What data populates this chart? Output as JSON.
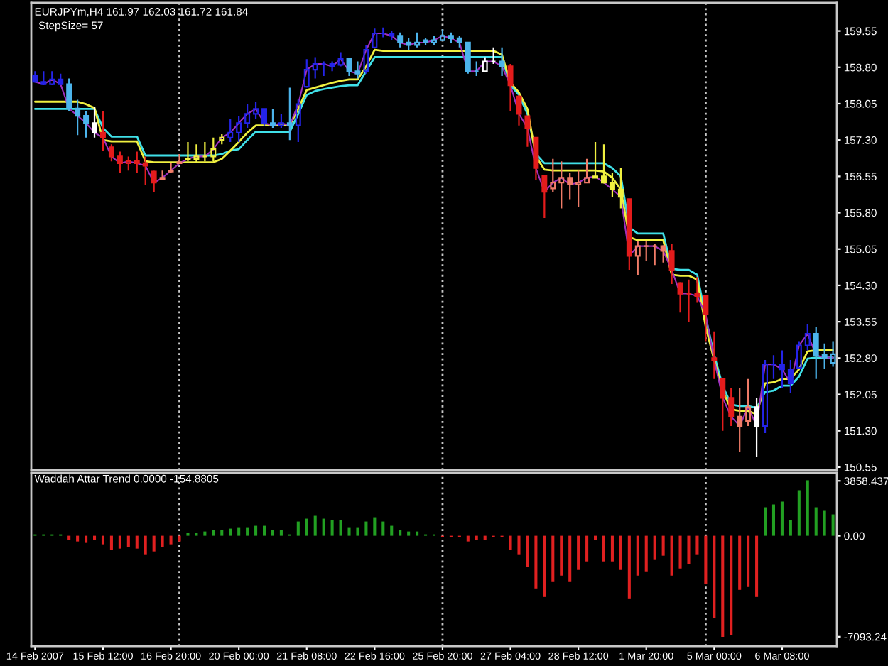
{
  "chart_data": [
    {
      "type": "candlestick",
      "title": "EURJPYm,H4 161.97 162.03 161.72 161.84",
      "subtitle": "StepSize= 57",
      "categories": [
        null,
        null,
        null,
        null,
        null,
        null,
        null,
        null,
        null,
        null,
        null,
        null,
        null,
        null,
        null,
        null,
        null,
        null,
        null,
        null,
        null,
        null,
        null,
        null,
        null,
        null,
        null,
        null,
        null,
        null,
        null,
        null,
        null,
        null,
        null,
        null,
        null,
        null,
        null,
        null,
        null,
        null,
        null,
        null,
        null,
        null,
        null,
        null,
        null,
        null,
        null,
        null,
        null,
        null,
        null,
        null,
        null,
        null,
        null,
        null,
        null,
        null,
        null,
        null,
        null,
        null,
        null,
        null,
        null,
        null,
        null,
        null,
        null,
        null,
        null,
        null,
        null,
        null,
        null,
        null,
        null,
        null,
        null,
        null,
        null,
        null,
        null,
        null,
        null,
        null,
        null,
        null,
        null,
        null,
        null
      ],
      "ohlc": [
        [
          158.62,
          158.72,
          158.48,
          158.5
        ],
        [
          158.5,
          158.72,
          158.43,
          158.45
        ],
        [
          158.45,
          158.72,
          158.43,
          158.55
        ],
        [
          158.55,
          158.67,
          158.43,
          158.45
        ],
        [
          158.45,
          158.57,
          157.89,
          157.95
        ],
        [
          157.95,
          158.13,
          157.4,
          157.8
        ],
        [
          157.8,
          157.89,
          157.35,
          157.65
        ],
        [
          157.65,
          157.99,
          157.35,
          157.45
        ],
        [
          157.45,
          157.89,
          157.08,
          157.35
        ],
        [
          157.15,
          157.21,
          156.86,
          156.96
        ],
        [
          156.96,
          157.06,
          156.62,
          156.82
        ],
        [
          156.82,
          156.96,
          156.67,
          156.86
        ],
        [
          156.86,
          157.06,
          156.62,
          156.82
        ],
        [
          156.82,
          156.96,
          156.38,
          156.77
        ],
        [
          156.65,
          156.67,
          156.23,
          156.42
        ],
        [
          156.5,
          156.67,
          156.47,
          156.52
        ],
        [
          156.65,
          156.82,
          156.62,
          156.67
        ],
        [
          156.84,
          157.01,
          156.82,
          156.82
        ],
        [
          156.9,
          157.26,
          156.86,
          156.91
        ],
        [
          156.91,
          157.21,
          156.82,
          156.96
        ],
        [
          156.96,
          157.26,
          156.86,
          156.96
        ],
        [
          156.96,
          157.35,
          156.86,
          157.11
        ],
        [
          157.3,
          157.42,
          157.21,
          157.35
        ],
        [
          157.35,
          157.74,
          157.26,
          157.45
        ],
        [
          157.45,
          157.79,
          157.26,
          157.65
        ],
        [
          157.65,
          158.04,
          157.55,
          157.84
        ],
        [
          157.84,
          158.09,
          157.74,
          157.94
        ],
        [
          157.94,
          157.94,
          157.6,
          157.65
        ],
        [
          157.65,
          157.94,
          157.55,
          157.6
        ],
        [
          157.6,
          157.84,
          157.55,
          157.65
        ],
        [
          157.65,
          158.38,
          157.3,
          157.6
        ],
        [
          157.6,
          158.13,
          157.26,
          158.04
        ],
        [
          158.4,
          158.97,
          158.38,
          158.75
        ],
        [
          158.75,
          159.01,
          158.57,
          158.87
        ],
        [
          158.87,
          158.92,
          158.62,
          158.87
        ],
        [
          158.87,
          158.92,
          158.72,
          158.82
        ],
        [
          158.85,
          159.11,
          158.82,
          158.97
        ],
        [
          158.97,
          158.97,
          158.62,
          158.72
        ],
        [
          158.72,
          158.92,
          158.57,
          158.67
        ],
        [
          158.72,
          159.26,
          158.67,
          159.16
        ],
        [
          159.21,
          159.6,
          159.21,
          159.5
        ],
        [
          159.5,
          159.62,
          159.42,
          159.5
        ],
        [
          159.5,
          159.55,
          159.36,
          159.45
        ],
        [
          159.45,
          159.52,
          159.21,
          159.31
        ],
        [
          159.31,
          159.4,
          159.16,
          159.26
        ],
        [
          159.26,
          159.52,
          159.21,
          159.31
        ],
        [
          159.36,
          159.4,
          159.26,
          159.31
        ],
        [
          159.31,
          159.45,
          159.26,
          159.36
        ],
        [
          159.36,
          159.58,
          159.36,
          159.45
        ],
        [
          159.45,
          159.52,
          159.31,
          159.4
        ],
        [
          159.4,
          159.45,
          159.21,
          159.31
        ],
        [
          159.31,
          159.31,
          158.67,
          158.72
        ],
        [
          158.72,
          158.92,
          158.62,
          158.72
        ],
        [
          158.72,
          159.01,
          158.72,
          158.92
        ],
        [
          158.92,
          159.21,
          158.87,
          158.92
        ],
        [
          158.92,
          159.21,
          158.62,
          158.82
        ],
        [
          158.82,
          158.87,
          157.89,
          158.43
        ],
        [
          158.2,
          158.23,
          157.6,
          157.84
        ],
        [
          157.79,
          157.79,
          157.16,
          157.55
        ],
        [
          157.35,
          157.35,
          156.47,
          156.72
        ],
        [
          156.57,
          156.57,
          155.69,
          156.23
        ],
        [
          156.3,
          156.91,
          156.23,
          156.42
        ],
        [
          156.42,
          156.86,
          155.89,
          156.52
        ],
        [
          156.52,
          156.62,
          156.08,
          156.38
        ],
        [
          156.38,
          156.67,
          155.91,
          156.42
        ],
        [
          156.42,
          156.91,
          156.42,
          156.52
        ],
        [
          156.52,
          157.26,
          156.52,
          156.55
        ],
        [
          156.55,
          157.21,
          156.4,
          156.42
        ],
        [
          156.42,
          156.62,
          156.13,
          156.28
        ],
        [
          156.28,
          156.72,
          155.89,
          156.13
        ],
        [
          156.08,
          156.08,
          154.62,
          154.91
        ],
        [
          154.91,
          155.21,
          154.52,
          155.11
        ],
        [
          155.11,
          155.21,
          154.81,
          155.11
        ],
        [
          155.11,
          155.16,
          154.72,
          155.11
        ],
        [
          155.11,
          155.13,
          154.77,
          155.01
        ],
        [
          155.01,
          155.16,
          154.33,
          154.62
        ],
        [
          154.35,
          154.37,
          153.74,
          154.13
        ],
        [
          154.13,
          154.42,
          153.55,
          154.13
        ],
        [
          154.13,
          154.47,
          153.94,
          154.08
        ],
        [
          154.08,
          154.08,
          153.15,
          153.7
        ],
        [
          152.8,
          153.35,
          152.37,
          152.76
        ],
        [
          152.37,
          152.37,
          151.3,
          151.98
        ],
        [
          151.98,
          152.18,
          151.4,
          151.59
        ],
        [
          151.59,
          152.18,
          150.86,
          151.4
        ],
        [
          151.5,
          152.37,
          151.4,
          151.79
        ],
        [
          151.79,
          151.98,
          150.76,
          151.4
        ],
        [
          151.4,
          152.76,
          151.25,
          152.67
        ],
        [
          152.67,
          152.86,
          152.37,
          152.67
        ],
        [
          152.67,
          152.96,
          152.18,
          152.57
        ],
        [
          152.57,
          152.76,
          152.08,
          152.28
        ],
        [
          152.6,
          153.15,
          152.57,
          153.06
        ],
        [
          153.06,
          153.5,
          152.96,
          153.3
        ],
        [
          153.3,
          153.45,
          152.37,
          152.86
        ],
        [
          152.86,
          153.1,
          152.57,
          152.81
        ],
        [
          152.7,
          153.15,
          152.62,
          152.88
        ]
      ],
      "colors": [
        "#2424e8",
        "#2424e8",
        "#2424e8",
        "#2424e8",
        "#4cb4ec",
        "#4cb4ec",
        "#4cb4ec",
        "#ffffff",
        "#e41c1c",
        "#e41c1c",
        "#e41c1c",
        "#e41c1c",
        "#e41c1c",
        "#e41c1c",
        "#e41c1c",
        "#f07c68",
        "#f07c68",
        "#f07c68",
        "#f0f040",
        "#f0f040",
        "#f0f040",
        "#f0f040",
        "#f0f040",
        "#2424e8",
        "#2424e8",
        "#2424e8",
        "#2424e8",
        "#2424e8",
        "#4cb4ec",
        "#2424e8",
        "#4cb4ec",
        "#2424e8",
        "#2424e8",
        "#2424e8",
        "#2424e8",
        "#2424e8",
        "#2424e8",
        "#4cb4ec",
        "#4cb4ec",
        "#2424e8",
        "#2424e8",
        "#2424e8",
        "#2424e8",
        "#4cb4ec",
        "#4cb4ec",
        "#4cb4ec",
        "#4cb4ec",
        "#4cb4ec",
        "#4cb4ec",
        "#4cb4ec",
        "#4cb4ec",
        "#4cb4ec",
        "#4cb4ec",
        "#ffffff",
        "#ffffff",
        "#4cb4ec",
        "#e41c1c",
        "#e41c1c",
        "#e41c1c",
        "#e41c1c",
        "#e41c1c",
        "#f07c68",
        "#f07c68",
        "#f07c68",
        "#f07c68",
        "#f07c68",
        "#f0f040",
        "#f0f040",
        "#f0f040",
        "#f0f040",
        "#e41c1c",
        "#f07c68",
        "#f07c68",
        "#f07c68",
        "#f07c68",
        "#e41c1c",
        "#e41c1c",
        "#e41c1c",
        "#e41c1c",
        "#e41c1c",
        "#e41c1c",
        "#e41c1c",
        "#e41c1c",
        "#f07c68",
        "#f07c68",
        "#ffffff",
        "#2424e8",
        "#2424e8",
        "#2424e8",
        "#2424e8",
        "#2424e8",
        "#2424e8",
        "#4cb4ec",
        "#4cb4ec",
        "#4cb4ec"
      ],
      "series": [
        {
          "type": "line",
          "color": "#40e0e8",
          "values": [
            157.94,
            157.94,
            157.94,
            157.94,
            157.94,
            157.94,
            157.94,
            157.94,
            157.55,
            157.37,
            157.37,
            157.37,
            157.37,
            156.98,
            156.98,
            156.98,
            156.98,
            156.98,
            156.98,
            156.98,
            156.98,
            156.98,
            157.01,
            157.08,
            157.11,
            157.3,
            157.47,
            157.47,
            157.47,
            157.47,
            157.47,
            157.84,
            158.23,
            158.31,
            158.35,
            158.38,
            158.41,
            158.43,
            158.43,
            158.72,
            159.01,
            159.01,
            159.01,
            159.01,
            159.01,
            159.01,
            159.01,
            159.01,
            159.01,
            159.01,
            159.01,
            159.01,
            159.01,
            159.01,
            159.01,
            159.01,
            158.43,
            158.23,
            157.84,
            157.01,
            156.82,
            156.82,
            156.82,
            156.82,
            156.82,
            156.82,
            156.82,
            156.82,
            156.72,
            156.55,
            155.5,
            155.37,
            155.37,
            155.37,
            155.37,
            154.64,
            154.62,
            154.62,
            154.52,
            153.64,
            152.86,
            152.23,
            151.84,
            151.81,
            151.81,
            151.77,
            152.1,
            152.13,
            152.23,
            152.23,
            152.42,
            152.79,
            152.81,
            152.81,
            152.81
          ]
        },
        {
          "type": "line",
          "color": "#f0f040",
          "values": [
            158.09,
            158.09,
            158.09,
            158.09,
            158.09,
            158.09,
            158.04,
            157.96,
            157.3,
            157.27,
            157.27,
            157.27,
            157.27,
            156.86,
            156.84,
            156.84,
            156.84,
            156.84,
            156.84,
            156.84,
            156.84,
            156.84,
            156.91,
            157.08,
            157.26,
            157.45,
            157.6,
            157.6,
            157.6,
            157.6,
            157.6,
            157.94,
            158.33,
            158.38,
            158.43,
            158.48,
            158.52,
            158.55,
            158.55,
            158.82,
            159.16,
            159.14,
            159.14,
            159.14,
            159.14,
            159.14,
            159.14,
            159.14,
            159.14,
            159.14,
            159.14,
            159.14,
            159.14,
            159.14,
            159.14,
            159.06,
            158.48,
            158.28,
            157.94,
            156.96,
            156.69,
            156.67,
            156.67,
            156.67,
            156.67,
            156.67,
            156.67,
            156.65,
            156.52,
            156.28,
            155.3,
            155.23,
            155.23,
            155.23,
            155.23,
            154.52,
            154.5,
            154.5,
            154.42,
            153.45,
            152.76,
            152.13,
            151.74,
            151.71,
            151.71,
            151.64,
            152.28,
            152.3,
            152.37,
            152.37,
            152.57,
            152.94,
            152.96,
            152.96,
            152.96
          ]
        },
        {
          "type": "line",
          "color": "#a030c0",
          "values": [
            158.5,
            158.45,
            158.55,
            158.45,
            157.95,
            157.8,
            157.65,
            157.45,
            157.35,
            156.96,
            156.82,
            156.86,
            156.82,
            156.77,
            156.42,
            156.52,
            156.67,
            156.82,
            156.91,
            156.96,
            156.96,
            157.11,
            157.35,
            157.45,
            157.65,
            157.84,
            157.94,
            157.65,
            157.6,
            157.65,
            157.6,
            158.04,
            158.75,
            158.87,
            158.87,
            158.82,
            158.97,
            158.72,
            158.67,
            159.16,
            159.5,
            159.5,
            159.45,
            159.31,
            159.26,
            159.31,
            159.31,
            159.36,
            159.45,
            159.4,
            159.31,
            158.72,
            158.72,
            158.92,
            158.92,
            158.82,
            158.43,
            157.84,
            157.55,
            156.72,
            156.23,
            156.42,
            156.52,
            156.38,
            156.42,
            156.52,
            156.55,
            156.42,
            156.28,
            156.13,
            154.91,
            155.11,
            155.11,
            155.11,
            155.01,
            154.62,
            154.13,
            154.13,
            154.08,
            153.7,
            152.76,
            151.98,
            151.59,
            151.4,
            151.79,
            151.4,
            152.67,
            152.67,
            152.57,
            152.28,
            153.06,
            153.3,
            152.86,
            152.81,
            152.81
          ]
        }
      ],
      "ylim": [
        150.49,
        160.13
      ],
      "yticks": [
        159.55,
        {
          "value": 158.8,
          "label": "158.80"
        },
        158.05,
        {
          "value": 157.3,
          "label": "157.30"
        },
        156.55,
        {
          "value": 155.8,
          "label": "155.80"
        },
        155.05,
        {
          "value": 154.3,
          "label": "154.30"
        },
        153.55,
        {
          "value": 152.8,
          "label": "152.80"
        },
        152.05,
        {
          "value": 151.3,
          "label": "151.30"
        },
        150.55
      ],
      "tick_labels": "y",
      "grid": "x"
    },
    {
      "type": "bar",
      "title": "Waddah Attar Trend 0.0000 -154.8805",
      "categories": [
        "14 Feb 2007",
        null,
        null,
        null,
        null,
        null,
        null,
        null,
        "15 Feb 12:00",
        null,
        null,
        null,
        null,
        null,
        null,
        null,
        "16 Feb 20:00",
        null,
        null,
        null,
        null,
        null,
        null,
        null,
        "20 Feb 00:00",
        null,
        null,
        null,
        null,
        null,
        null,
        null,
        "21 Feb 08:00",
        null,
        null,
        null,
        null,
        null,
        null,
        null,
        "22 Feb 16:00",
        null,
        null,
        null,
        null,
        null,
        null,
        null,
        "25 Feb 20:00",
        null,
        null,
        null,
        null,
        null,
        null,
        null,
        "27 Feb 04:00",
        null,
        null,
        null,
        null,
        null,
        null,
        null,
        "28 Feb 12:00",
        null,
        null,
        null,
        null,
        null,
        null,
        null,
        "1 Mar 20:00",
        null,
        null,
        null,
        null,
        null,
        null,
        null,
        "5 Mar 00:00",
        null,
        null,
        null,
        null,
        null,
        null,
        null,
        "6 Mar 08:00",
        null,
        null,
        null,
        null,
        null,
        null
      ],
      "values": [
        100,
        100,
        100,
        100,
        -300,
        -400,
        -500,
        -300,
        -600,
        -1000,
        -900,
        -800,
        -900,
        -1300,
        -1100,
        -800,
        -600,
        -400,
        200,
        200,
        300,
        400,
        400,
        500,
        600,
        600,
        700,
        700,
        400,
        400,
        100,
        1000,
        1200,
        1400,
        1200,
        1100,
        1100,
        600,
        600,
        1000,
        1300,
        1000,
        700,
        400,
        300,
        300,
        100,
        100,
        -100,
        -100,
        -100,
        -400,
        -300,
        -300,
        -100,
        -100,
        -1000,
        -1300,
        -2200,
        -3700,
        -4300,
        -3200,
        -2800,
        -3200,
        -2400,
        -1800,
        -300,
        -1800,
        -1800,
        -2400,
        -4400,
        -2800,
        -2500,
        -1700,
        -1400,
        -2800,
        -2300,
        -2000,
        -1300,
        -3400,
        -5800,
        -7100,
        -7000,
        -3800,
        -3600,
        -4300,
        2000,
        2200,
        2400,
        1100,
        3200,
        3900,
        2000,
        1800,
        1500
      ],
      "colors": [
        "#22a022",
        "#22a022",
        "#22a022",
        "#22a022",
        "#e02020",
        "#e02020",
        "#e02020",
        "#e02020",
        "#e02020",
        "#e02020",
        "#e02020",
        "#e02020",
        "#e02020",
        "#e02020",
        "#e02020",
        "#e02020",
        "#e02020",
        "#e02020",
        "#22a022",
        "#22a022",
        "#22a022",
        "#22a022",
        "#22a022",
        "#22a022",
        "#22a022",
        "#22a022",
        "#22a022",
        "#22a022",
        "#22a022",
        "#22a022",
        "#22a022",
        "#22a022",
        "#22a022",
        "#22a022",
        "#22a022",
        "#22a022",
        "#22a022",
        "#22a022",
        "#22a022",
        "#22a022",
        "#22a022",
        "#22a022",
        "#22a022",
        "#22a022",
        "#22a022",
        "#22a022",
        "#22a022",
        "#22a022",
        "#e02020",
        "#e02020",
        "#e02020",
        "#e02020",
        "#e02020",
        "#e02020",
        "#e02020",
        "#e02020",
        "#e02020",
        "#e02020",
        "#e02020",
        "#e02020",
        "#e02020",
        "#e02020",
        "#e02020",
        "#e02020",
        "#e02020",
        "#e02020",
        "#e02020",
        "#e02020",
        "#e02020",
        "#e02020",
        "#e02020",
        "#e02020",
        "#e02020",
        "#e02020",
        "#e02020",
        "#e02020",
        "#e02020",
        "#e02020",
        "#e02020",
        "#e02020",
        "#e02020",
        "#e02020",
        "#e02020",
        "#e02020",
        "#e02020",
        "#e02020",
        "#22a022",
        "#22a022",
        "#22a022",
        "#22a022",
        "#22a022",
        "#22a022",
        "#22a022",
        "#22a022",
        "#22a022"
      ],
      "ylim": [
        -7750,
        4420
      ],
      "yticks": [
        3858.437,
        {
          "value": 0,
          "label": "0.00"
        },
        -7093.24
      ],
      "grid": "x"
    }
  ]
}
